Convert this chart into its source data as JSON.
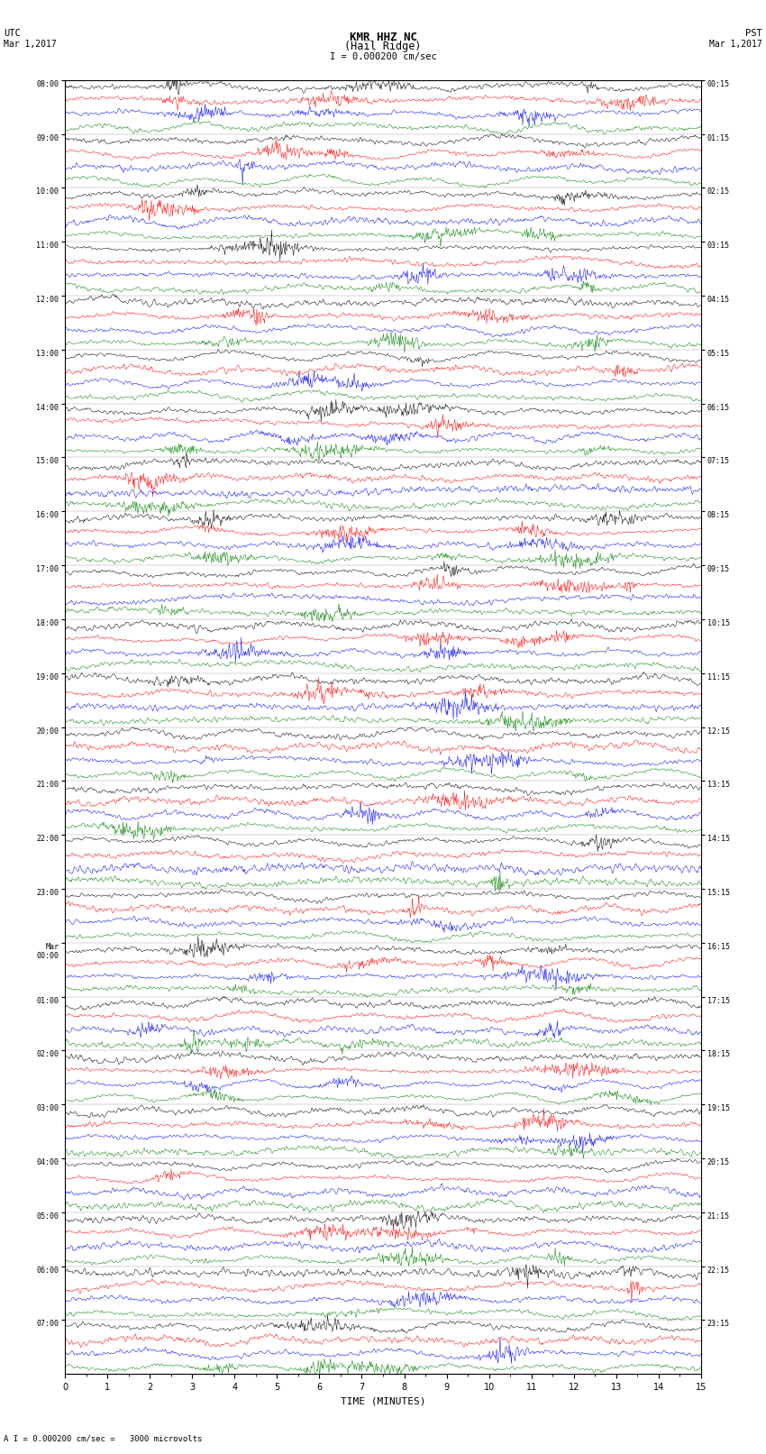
{
  "title_line1": "KMR HHZ NC",
  "title_line2": "(Hail Ridge)",
  "scale_label": "I = 0.000200 cm/sec",
  "bottom_label": "A I = 0.000200 cm/sec =   3000 microvolts",
  "xlabel": "TIME (MINUTES)",
  "left_times": [
    "08:00",
    "09:00",
    "10:00",
    "11:00",
    "12:00",
    "13:00",
    "14:00",
    "15:00",
    "16:00",
    "17:00",
    "18:00",
    "19:00",
    "20:00",
    "21:00",
    "22:00",
    "23:00",
    "Mar\n00:00",
    "01:00",
    "02:00",
    "03:00",
    "04:00",
    "05:00",
    "06:00",
    "07:00"
  ],
  "right_times": [
    "00:15",
    "01:15",
    "02:15",
    "03:15",
    "04:15",
    "05:15",
    "06:15",
    "07:15",
    "08:15",
    "09:15",
    "10:15",
    "11:15",
    "12:15",
    "13:15",
    "14:15",
    "15:15",
    "16:15",
    "17:15",
    "18:15",
    "19:15",
    "20:15",
    "21:15",
    "22:15",
    "23:15"
  ],
  "n_hours": 24,
  "n_channels": 4,
  "colors": [
    "black",
    "red",
    "blue",
    "green"
  ],
  "time_minutes": 15,
  "samples_per_row": 900,
  "background_color": "white",
  "fig_width": 8.5,
  "fig_height": 16.13,
  "dpi": 100
}
